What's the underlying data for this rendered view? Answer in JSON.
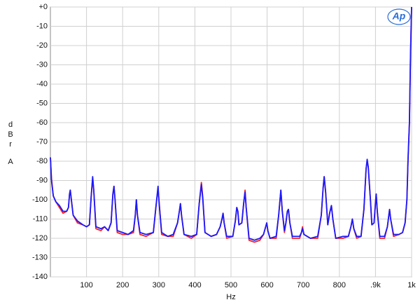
{
  "chart_data": {
    "type": "line",
    "xlabel": "Hz",
    "ylabel": "dBr",
    "ylabel2": "A",
    "logo": "Ap",
    "x": [
      0,
      3,
      8,
      15,
      25,
      35,
      45,
      50,
      53,
      55,
      58,
      63,
      75,
      90,
      100,
      108,
      113,
      117,
      120,
      126,
      140,
      150,
      160,
      168,
      173,
      176,
      179,
      185,
      200,
      215,
      230,
      235,
      238,
      241,
      248,
      265,
      285,
      292,
      298,
      301,
      308,
      325,
      340,
      352,
      357,
      360,
      363,
      370,
      390,
      405,
      412,
      418,
      422,
      428,
      445,
      460,
      470,
      475,
      478,
      481,
      488,
      505,
      512,
      516,
      519,
      522,
      530,
      535,
      539,
      542,
      550,
      565,
      580,
      590,
      596,
      599,
      602,
      608,
      625,
      632,
      638,
      642,
      648,
      652,
      656,
      659,
      663,
      670,
      690,
      695,
      698,
      702,
      720,
      740,
      750,
      755,
      758,
      762,
      768,
      773,
      778,
      782,
      790,
      810,
      825,
      832,
      836,
      840,
      848,
      860,
      868,
      874,
      877,
      880,
      886,
      890,
      896,
      900,
      902,
      905,
      912,
      925,
      933,
      937,
      939,
      942,
      950,
      965,
      975,
      982,
      987,
      990,
      994,
      997,
      1000
    ],
    "series": [
      {
        "color": "#ff2020",
        "values": [
          -78,
          -89,
          -98,
          -101,
          -104,
          -107,
          -106,
          -104,
          -97,
          -95,
          -100,
          -108,
          -112,
          -113,
          -114,
          -113,
          -98,
          -89,
          -95,
          -115,
          -116,
          -114,
          -116,
          -112,
          -97,
          -93,
          -100,
          -117,
          -118,
          -118,
          -117,
          -108,
          -100,
          -108,
          -118,
          -119,
          -117,
          -104,
          -94,
          -101,
          -118,
          -119,
          -119,
          -112,
          -106,
          -102,
          -108,
          -118,
          -120,
          -118,
          -102,
          -91,
          -99,
          -117,
          -119,
          -118,
          -114,
          -110,
          -107,
          -112,
          -120,
          -119,
          -111,
          -104,
          -106,
          -113,
          -112,
          -102,
          -95,
          -104,
          -121,
          -122,
          -121,
          -118,
          -114,
          -112,
          -116,
          -120,
          -120,
          -108,
          -95,
          -106,
          -117,
          -112,
          -106,
          -105,
          -112,
          -120,
          -120,
          -117,
          -114,
          -118,
          -120,
          -120,
          -108,
          -94,
          -88,
          -96,
          -113,
          -107,
          -103,
          -110,
          -120,
          -120,
          -119,
          -114,
          -110,
          -115,
          -120,
          -119,
          -105,
          -84,
          -80,
          -83,
          -100,
          -113,
          -112,
          -101,
          -97,
          -106,
          -120,
          -120,
          -114,
          -108,
          -105,
          -110,
          -119,
          -118,
          -117,
          -112,
          -100,
          -80,
          -60,
          -25,
          0
        ]
      },
      {
        "color": "#1a1aff",
        "values": [
          -78,
          -90,
          -98,
          -101,
          -103,
          -106,
          -106,
          -104,
          -97,
          -95,
          -100,
          -108,
          -111,
          -113,
          -114,
          -113,
          -98,
          -88,
          -95,
          -114,
          -115,
          -114,
          -116,
          -112,
          -97,
          -93,
          -100,
          -116,
          -117,
          -118,
          -116,
          -108,
          -100,
          -108,
          -117,
          -118,
          -117,
          -104,
          -93,
          -102,
          -117,
          -119,
          -118,
          -112,
          -106,
          -102,
          -108,
          -118,
          -119,
          -118,
          -102,
          -92,
          -100,
          -117,
          -119,
          -118,
          -114,
          -110,
          -107,
          -112,
          -119,
          -119,
          -111,
          -104,
          -106,
          -113,
          -112,
          -102,
          -96,
          -104,
          -120,
          -121,
          -120,
          -118,
          -114,
          -112,
          -116,
          -120,
          -119,
          -108,
          -95,
          -106,
          -116,
          -112,
          -106,
          -105,
          -112,
          -119,
          -119,
          -117,
          -115,
          -118,
          -120,
          -119,
          -108,
          -94,
          -88,
          -96,
          -113,
          -107,
          -103,
          -110,
          -120,
          -119,
          -119,
          -114,
          -110,
          -115,
          -119,
          -119,
          -105,
          -84,
          -79,
          -83,
          -100,
          -113,
          -112,
          -102,
          -97,
          -106,
          -119,
          -119,
          -114,
          -108,
          -105,
          -110,
          -118,
          -118,
          -117,
          -112,
          -100,
          -80,
          -60,
          -25,
          0
        ]
      }
    ],
    "xlim": [
      0,
      1000
    ],
    "xticks": [
      100,
      200,
      300,
      400,
      500,
      600,
      700,
      800,
      {
        "value": 900,
        "label": ".9k"
      },
      {
        "value": 1000,
        "label": "1k"
      }
    ],
    "ylim": [
      -140,
      0
    ],
    "yticks": [
      {
        "value": 0,
        "label": "+0"
      },
      -10,
      -20,
      -30,
      -40,
      -50,
      -60,
      -70,
      -80,
      -90,
      -100,
      -110,
      -120,
      -130,
      -140
    ],
    "grid": true
  }
}
